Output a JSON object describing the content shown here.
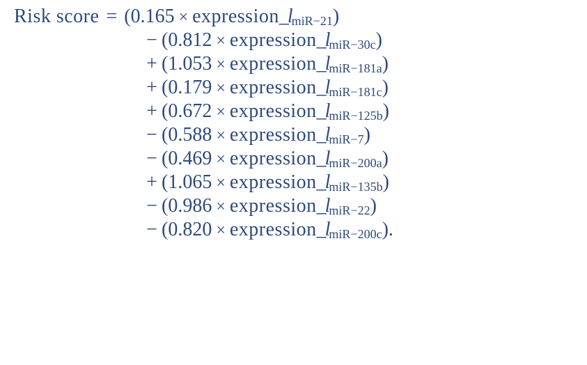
{
  "equation": {
    "lhs": "Risk score",
    "eq_sign": "=",
    "terms": [
      {
        "op": "",
        "coef": "0.165",
        "expr": "expression",
        "sub": "miR−21",
        "trail": ")"
      },
      {
        "op": "−",
        "coef": "0.812",
        "expr": "expression",
        "sub": "miR−30c",
        "trail": ")"
      },
      {
        "op": "+",
        "coef": "1.053",
        "expr": "expression",
        "sub": "miR−181a",
        "trail": ")"
      },
      {
        "op": "+",
        "coef": "0.179",
        "expr": "expression",
        "sub": "miR−181c",
        "trail": ")"
      },
      {
        "op": "+",
        "coef": "0.672",
        "expr": "expression",
        "sub": "miR−125b",
        "trail": ")"
      },
      {
        "op": "−",
        "coef": "0.588",
        "expr": "expression",
        "sub": "miR−7",
        "trail": ")"
      },
      {
        "op": "−",
        "coef": "0.469",
        "expr": "expression",
        "sub": "miR−200a",
        "trail": ")"
      },
      {
        "op": "+",
        "coef": "1.065",
        "expr": "expression",
        "sub": "miR−135b",
        "trail": ")"
      },
      {
        "op": "−",
        "coef": "0.986",
        "expr": "expression",
        "sub": "miR−22",
        "trail": ")"
      },
      {
        "op": "−",
        "coef": "0.820",
        "expr": "expression",
        "sub": "miR−200c",
        "trail": ")."
      }
    ],
    "text_color": "#2e4a7a",
    "background_color": "#ffffff",
    "font_family": "Georgia, Times New Roman, serif",
    "lhs_fontsize": 28,
    "coef_fontsize": 28,
    "sub_fontsize": 18,
    "italic_l": "_l"
  },
  "times_symbol": "×",
  "open_paren": "(",
  "close_paren": ")"
}
